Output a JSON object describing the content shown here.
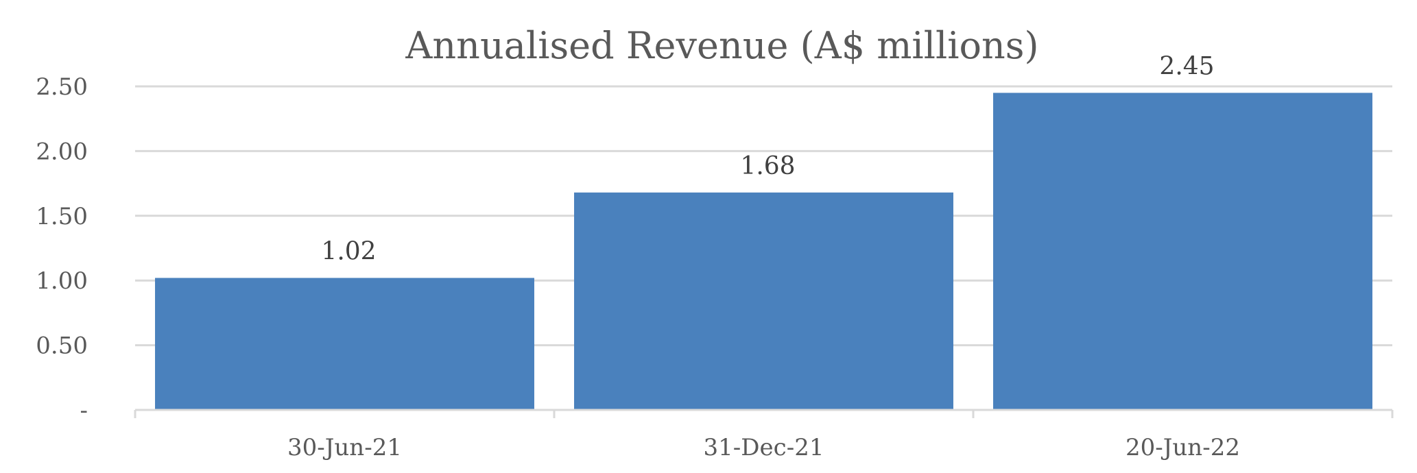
{
  "chart_data": {
    "type": "bar",
    "title": "Annualised Revenue (A$ millions)",
    "xlabel": "",
    "ylabel": "",
    "categories": [
      "30-Jun-21",
      "31-Dec-21",
      "20-Jun-22"
    ],
    "values": [
      1.02,
      1.68,
      2.45
    ],
    "data_labels": [
      "1.02",
      "1.68",
      "2.45"
    ],
    "ylim": [
      0,
      2.5
    ],
    "y_ticks": [
      0,
      0.5,
      1.0,
      1.5,
      2.0,
      2.5
    ],
    "y_tick_labels": [
      "-",
      "0.50",
      "1.00",
      "1.50",
      "2.00",
      "2.50"
    ],
    "grid": true,
    "legend": "none",
    "colors": {
      "bar": "#4a81bd",
      "grid": "#d9d9d9",
      "axis": "#d9d9d9"
    }
  }
}
